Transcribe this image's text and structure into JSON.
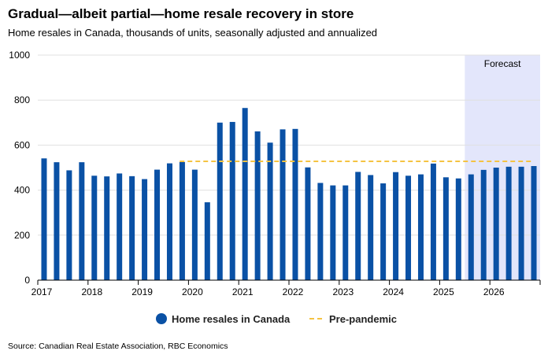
{
  "title": "Gradual—albeit partial—home resale recovery in store",
  "subtitle": "Home resales in Canada, thousands of units, seasonally adjusted and annualized",
  "source": "Source: Canadian Real Estate Association, RBC Economics",
  "colors": {
    "bar": "#0a51a5",
    "prepandemic": "#f5c342",
    "forecast_bg": "#e3e6fb",
    "grid": "#e0e0e0",
    "axis": "#000000"
  },
  "chart_data": {
    "type": "bar",
    "title": "Gradual—albeit partial—home resale recovery in store",
    "subtitle": "Home resales in Canada, thousands of units, seasonally adjusted and annualized",
    "xlabel": "",
    "ylabel": "",
    "ylim": [
      0,
      1000
    ],
    "yticks": [
      0,
      200,
      400,
      600,
      800,
      1000
    ],
    "xtick_labels": [
      "2017",
      "2018",
      "2019",
      "2020",
      "2021",
      "2022",
      "2023",
      "2024",
      "2025",
      "2026"
    ],
    "grid": true,
    "legend_position": "bottom",
    "categories": [
      "2017 Q1",
      "2017 Q2",
      "2017 Q3",
      "2017 Q4",
      "2018 Q1",
      "2018 Q2",
      "2018 Q3",
      "2018 Q4",
      "2019 Q1",
      "2019 Q2",
      "2019 Q3",
      "2019 Q4",
      "2020 Q1",
      "2020 Q2",
      "2020 Q3",
      "2020 Q4",
      "2021 Q1",
      "2021 Q2",
      "2021 Q3",
      "2021 Q4",
      "2022 Q1",
      "2022 Q2",
      "2022 Q3",
      "2022 Q4",
      "2023 Q1",
      "2023 Q2",
      "2023 Q3",
      "2023 Q4",
      "2024 Q1",
      "2024 Q2",
      "2024 Q3",
      "2024 Q4",
      "2025 Q1",
      "2025 Q2",
      "2025 Q3",
      "2025 Q4",
      "2026 Q1",
      "2026 Q2",
      "2026 Q3",
      "2026 Q4"
    ],
    "series": [
      {
        "name": "Home resales in Canada",
        "type": "bar",
        "values": [
          541,
          524,
          488,
          524,
          464,
          461,
          474,
          462,
          449,
          491,
          519,
          525,
          491,
          346,
          700,
          703,
          765,
          661,
          611,
          670,
          672,
          501,
          432,
          421,
          421,
          481,
          467,
          430,
          480,
          464,
          470,
          518,
          457,
          452,
          470,
          490,
          500,
          504,
          504,
          507
        ]
      },
      {
        "name": "Pre-pandemic",
        "type": "line",
        "style": "dashed",
        "value": 528,
        "x_start": "2019 Q4",
        "x_end": "2026 Q4"
      }
    ],
    "annotations": [
      {
        "text": "Forecast",
        "region": [
          "2025 Q3",
          "2026 Q4"
        ]
      }
    ]
  }
}
